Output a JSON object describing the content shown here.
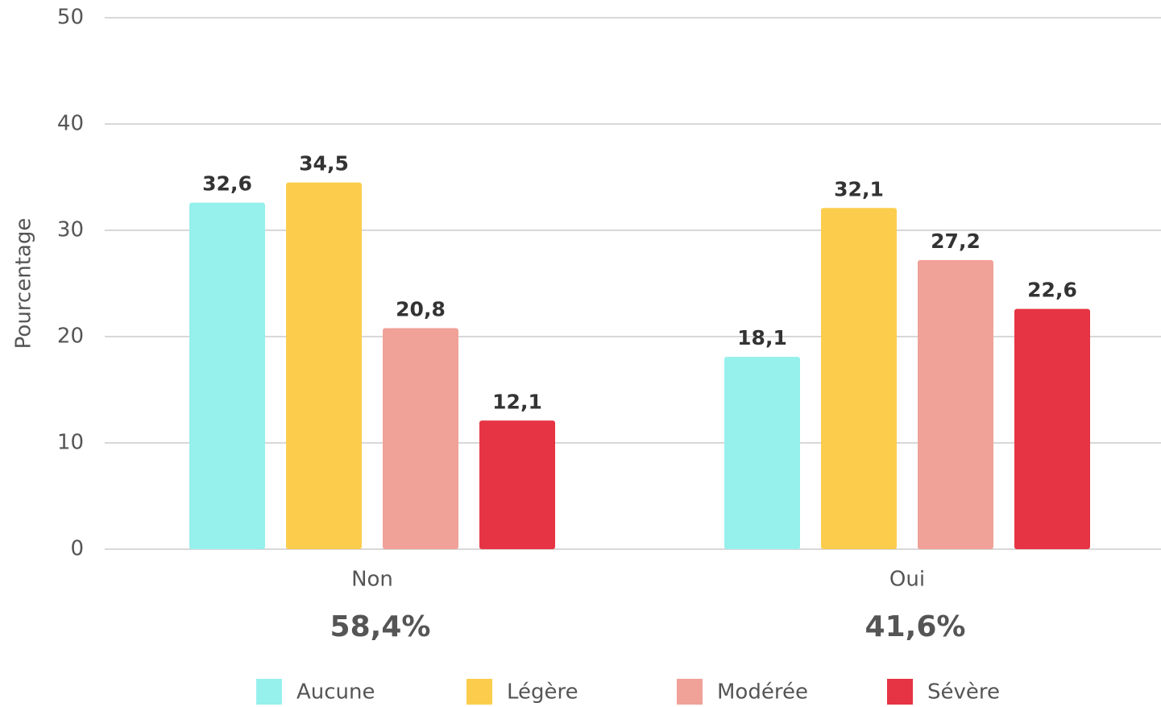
{
  "chart_data": {
    "type": "bar",
    "y_label": "Pourcentage",
    "categories": [
      "Non",
      "Oui"
    ],
    "category_annotations": [
      "58,4%",
      "41,6%"
    ],
    "series": [
      {
        "name": "Aucune",
        "color": "#96f0ec",
        "values": [
          32.6,
          18.1
        ],
        "value_labels": [
          "32,6",
          "18,1"
        ]
      },
      {
        "name": "Légère",
        "color": "#fccd4d",
        "values": [
          34.5,
          32.1
        ],
        "value_labels": [
          "34,5",
          "32,1"
        ]
      },
      {
        "name": "Modérée",
        "color": "#f0a198",
        "values": [
          20.8,
          27.2
        ],
        "value_labels": [
          "20,8",
          "27,2"
        ]
      },
      {
        "name": "Sévère",
        "color": "#e63444",
        "values": [
          12.1,
          22.6
        ],
        "value_labels": [
          "12,1",
          "22,6"
        ]
      }
    ],
    "ylim": [
      0,
      50
    ],
    "yticks": [
      0,
      10,
      20,
      30,
      40,
      50
    ],
    "grid": true,
    "legend": "bottom"
  }
}
